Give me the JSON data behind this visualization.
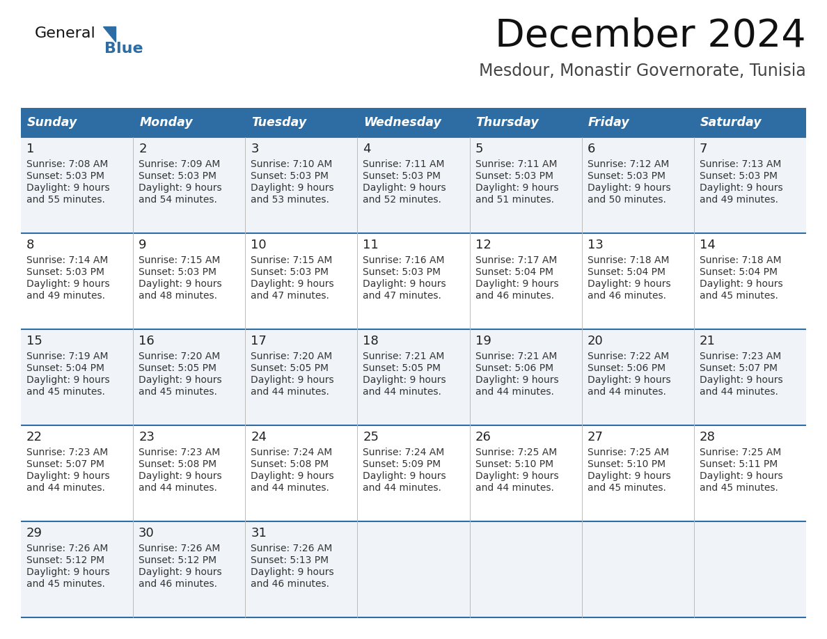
{
  "title": "December 2024",
  "subtitle": "Mesdour, Monastir Governorate, Tunisia",
  "days_of_week": [
    "Sunday",
    "Monday",
    "Tuesday",
    "Wednesday",
    "Thursday",
    "Friday",
    "Saturday"
  ],
  "header_bg": "#2E6DA4",
  "header_text": "#FFFFFF",
  "row_bg_even": "#F0F4F8",
  "row_bg_odd": "#FFFFFF",
  "cell_border_color": "#2E6DA4",
  "day_num_color": "#222222",
  "info_text_color": "#333333",
  "calendar": [
    [
      {
        "day": 1,
        "sunrise": "7:08 AM",
        "sunset": "5:03 PM",
        "daylight": "9 hours and 55 minutes."
      },
      {
        "day": 2,
        "sunrise": "7:09 AM",
        "sunset": "5:03 PM",
        "daylight": "9 hours and 54 minutes."
      },
      {
        "day": 3,
        "sunrise": "7:10 AM",
        "sunset": "5:03 PM",
        "daylight": "9 hours and 53 minutes."
      },
      {
        "day": 4,
        "sunrise": "7:11 AM",
        "sunset": "5:03 PM",
        "daylight": "9 hours and 52 minutes."
      },
      {
        "day": 5,
        "sunrise": "7:11 AM",
        "sunset": "5:03 PM",
        "daylight": "9 hours and 51 minutes."
      },
      {
        "day": 6,
        "sunrise": "7:12 AM",
        "sunset": "5:03 PM",
        "daylight": "9 hours and 50 minutes."
      },
      {
        "day": 7,
        "sunrise": "7:13 AM",
        "sunset": "5:03 PM",
        "daylight": "9 hours and 49 minutes."
      }
    ],
    [
      {
        "day": 8,
        "sunrise": "7:14 AM",
        "sunset": "5:03 PM",
        "daylight": "9 hours and 49 minutes."
      },
      {
        "day": 9,
        "sunrise": "7:15 AM",
        "sunset": "5:03 PM",
        "daylight": "9 hours and 48 minutes."
      },
      {
        "day": 10,
        "sunrise": "7:15 AM",
        "sunset": "5:03 PM",
        "daylight": "9 hours and 47 minutes."
      },
      {
        "day": 11,
        "sunrise": "7:16 AM",
        "sunset": "5:03 PM",
        "daylight": "9 hours and 47 minutes."
      },
      {
        "day": 12,
        "sunrise": "7:17 AM",
        "sunset": "5:04 PM",
        "daylight": "9 hours and 46 minutes."
      },
      {
        "day": 13,
        "sunrise": "7:18 AM",
        "sunset": "5:04 PM",
        "daylight": "9 hours and 46 minutes."
      },
      {
        "day": 14,
        "sunrise": "7:18 AM",
        "sunset": "5:04 PM",
        "daylight": "9 hours and 45 minutes."
      }
    ],
    [
      {
        "day": 15,
        "sunrise": "7:19 AM",
        "sunset": "5:04 PM",
        "daylight": "9 hours and 45 minutes."
      },
      {
        "day": 16,
        "sunrise": "7:20 AM",
        "sunset": "5:05 PM",
        "daylight": "9 hours and 45 minutes."
      },
      {
        "day": 17,
        "sunrise": "7:20 AM",
        "sunset": "5:05 PM",
        "daylight": "9 hours and 44 minutes."
      },
      {
        "day": 18,
        "sunrise": "7:21 AM",
        "sunset": "5:05 PM",
        "daylight": "9 hours and 44 minutes."
      },
      {
        "day": 19,
        "sunrise": "7:21 AM",
        "sunset": "5:06 PM",
        "daylight": "9 hours and 44 minutes."
      },
      {
        "day": 20,
        "sunrise": "7:22 AM",
        "sunset": "5:06 PM",
        "daylight": "9 hours and 44 minutes."
      },
      {
        "day": 21,
        "sunrise": "7:23 AM",
        "sunset": "5:07 PM",
        "daylight": "9 hours and 44 minutes."
      }
    ],
    [
      {
        "day": 22,
        "sunrise": "7:23 AM",
        "sunset": "5:07 PM",
        "daylight": "9 hours and 44 minutes."
      },
      {
        "day": 23,
        "sunrise": "7:23 AM",
        "sunset": "5:08 PM",
        "daylight": "9 hours and 44 minutes."
      },
      {
        "day": 24,
        "sunrise": "7:24 AM",
        "sunset": "5:08 PM",
        "daylight": "9 hours and 44 minutes."
      },
      {
        "day": 25,
        "sunrise": "7:24 AM",
        "sunset": "5:09 PM",
        "daylight": "9 hours and 44 minutes."
      },
      {
        "day": 26,
        "sunrise": "7:25 AM",
        "sunset": "5:10 PM",
        "daylight": "9 hours and 44 minutes."
      },
      {
        "day": 27,
        "sunrise": "7:25 AM",
        "sunset": "5:10 PM",
        "daylight": "9 hours and 45 minutes."
      },
      {
        "day": 28,
        "sunrise": "7:25 AM",
        "sunset": "5:11 PM",
        "daylight": "9 hours and 45 minutes."
      }
    ],
    [
      {
        "day": 29,
        "sunrise": "7:26 AM",
        "sunset": "5:12 PM",
        "daylight": "9 hours and 45 minutes."
      },
      {
        "day": 30,
        "sunrise": "7:26 AM",
        "sunset": "5:12 PM",
        "daylight": "9 hours and 46 minutes."
      },
      {
        "day": 31,
        "sunrise": "7:26 AM",
        "sunset": "5:13 PM",
        "daylight": "9 hours and 46 minutes."
      },
      null,
      null,
      null,
      null
    ]
  ]
}
